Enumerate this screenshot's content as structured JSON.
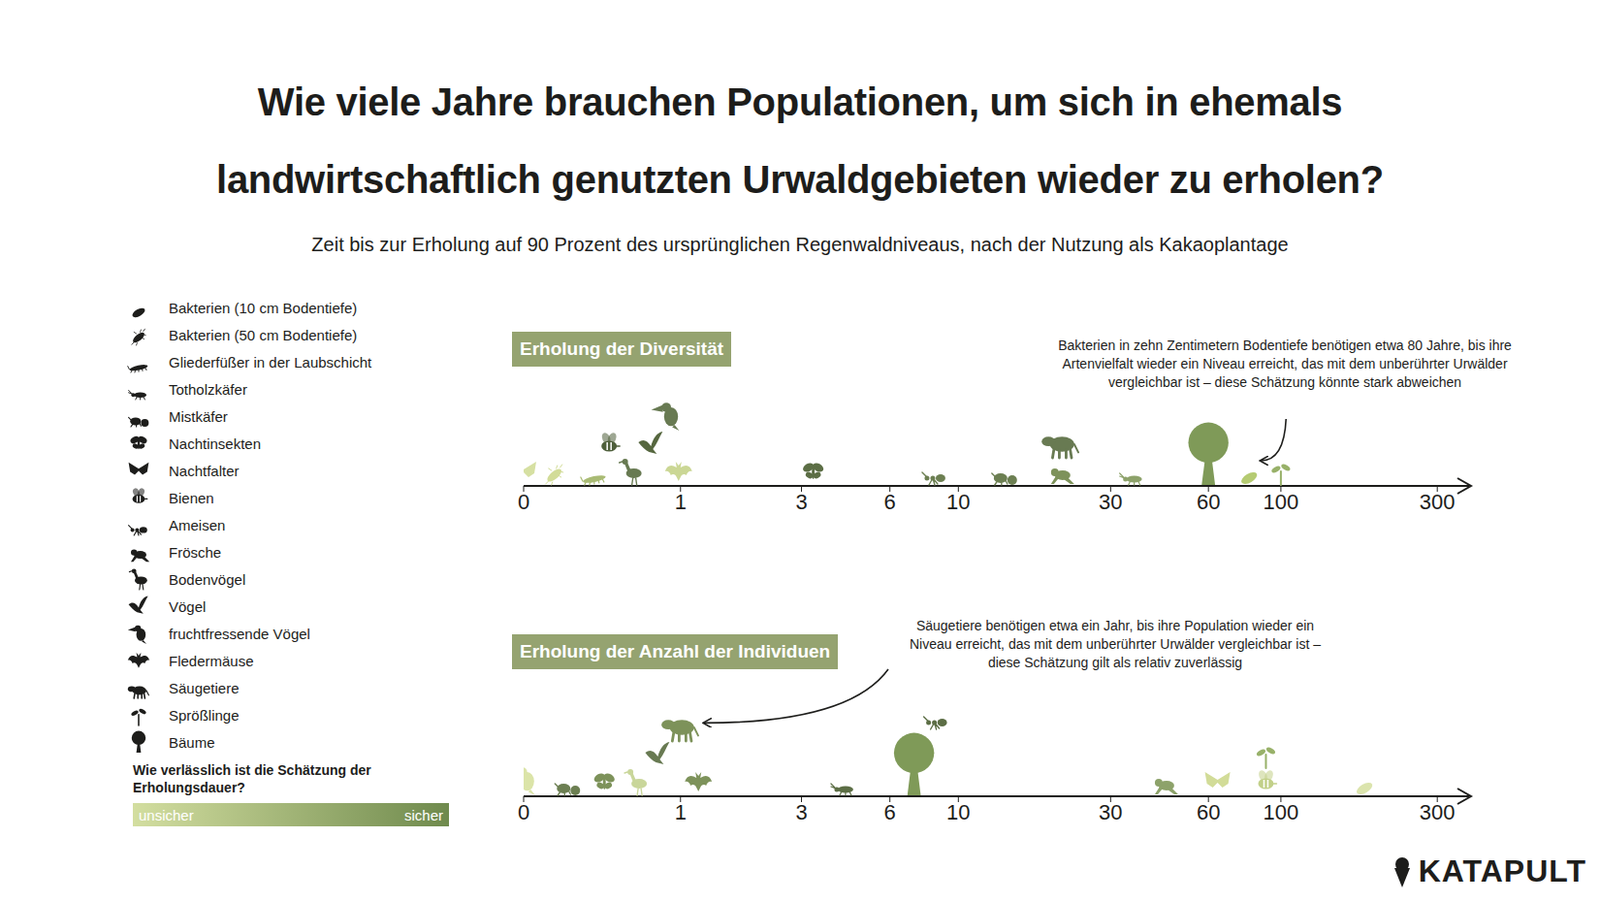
{
  "title": "Wie viele Jahre brauchen Populationen, um sich in ehemals landwirtschaftlich genutzten Urwaldgebieten wieder zu erholen?",
  "subtitle": "Zeit bis zur Erholung auf 90 Prozent des ursprünglichen Regenwaldniveaus, nach der Nutzung als Kakaoplantage",
  "legend_items": [
    "Bakterien (10 cm Bodentiefe)",
    "Bakterien (50 cm Bodentiefe)",
    "Gliederfüßer in der Laubschicht",
    "Totholzkäfer",
    "Mistkäfer",
    "Nachtinsekten",
    "Nachtfalter",
    "Bienen",
    "Ameisen",
    "Frösche",
    "Bodenvögel",
    "Vögel",
    "fruchtfressende Vögel",
    "Fledermäuse",
    "Säugetiere",
    "Sprößlinge",
    "Bäume"
  ],
  "reliability": {
    "title": "Wie verlässlich ist die Schätzung der Erholungsdauer?",
    "low": "unsicher",
    "high": "sicher",
    "colors": [
      "#d3dea0",
      "#6f8a4d"
    ]
  },
  "brand": "KATAPULT",
  "chart_data": [
    {
      "type": "scatter",
      "title": "Erholung der Diversität",
      "labels": [
        "Nachtfalter",
        "Bakterien (50 cm Bodentiefe)",
        "Gliederfüßer in der Laubschicht",
        "Bienen",
        "Bodenvögel",
        "Vögel",
        "fruchtfressende Vögel",
        "Fledermäuse",
        "Nachtinsekten",
        "Ameisen",
        "Mistkäfer",
        "Frösche",
        "Säugetiere",
        "Totholzkäfer",
        "Bäume",
        "Bakterien (10 cm Bodentiefe)",
        "Sprößlinge"
      ],
      "x": [
        0,
        0.12,
        0.32,
        0.41,
        0.56,
        0.72,
        0.87,
        0.98,
        3.3,
        8.4,
        14,
        21,
        21,
        35,
        60,
        80,
        100
      ],
      "colors": [
        "#d6e0a2",
        "#d2dc98",
        "#a9bb74",
        "#4e5f3b",
        "#687a52",
        "#56673f",
        "#687a52",
        "#cbd795",
        "#5c6e45",
        "#6c7f52",
        "#6c7f52",
        "#7d925a",
        "#687a52",
        "#8da26a",
        "#7f9a58",
        "#b5cb72",
        "#98b169"
      ],
      "xlim": [
        0,
        375
      ],
      "xticks": [
        0,
        1,
        3,
        6,
        10,
        30,
        60,
        100,
        300
      ],
      "log": "x",
      "annotation": {
        "text": "Bakterien in zehn Zentimetern Bodentiefe benötigen etwa 80 Jahre, bis ihre Artenvielfalt wieder ein Niveau erreicht, das mit dem unberührter Urwälder vergleichbar ist – diese Schätzung könnte stark abweichen",
        "label": "Bakterien (10 cm Bodentiefe)"
      }
    },
    {
      "type": "scatter",
      "title": "Erholung der Anzahl der Individuen",
      "labels": [
        "fruchtfressende Vögel",
        "Mistkäfer",
        "Nachtinsekten",
        "Bodenvögel",
        "Vögel",
        "Säugetiere",
        "Fledermäuse",
        "Totholzkäfer",
        "Bäume",
        "Ameisen",
        "Frösche",
        "Nachtfalter",
        "Bienen",
        "Sprößlinge",
        "Bakterien (10 cm Bodentiefe)"
      ],
      "x": [
        0,
        0.18,
        0.38,
        0.6,
        0.78,
        1,
        1.2,
        4.2,
        7.2,
        8.5,
        44,
        64,
        90,
        90,
        180
      ],
      "colors": [
        "#dbe4a8",
        "#6c7f52",
        "#7d925a",
        "#c9d69a",
        "#687a52",
        "#7d925a",
        "#7d925a",
        "#5c6e45",
        "#7f9a58",
        "#5c6e45",
        "#8da26a",
        "#d2dc98",
        "#c2d089",
        "#98b169",
        "#dbe4ad"
      ],
      "xlim": [
        0,
        375
      ],
      "xticks": [
        0,
        1,
        3,
        6,
        10,
        30,
        60,
        100,
        300
      ],
      "log": "x",
      "annotation": {
        "text": "Säugetiere benötigen etwa ein Jahr, bis ihre Population wieder ein Niveau erreicht, das mit dem unberührter Urwälder vergleichbar ist – diese Schätzung gilt als relativ zuverlässig",
        "label": "Säugetiere"
      }
    }
  ]
}
